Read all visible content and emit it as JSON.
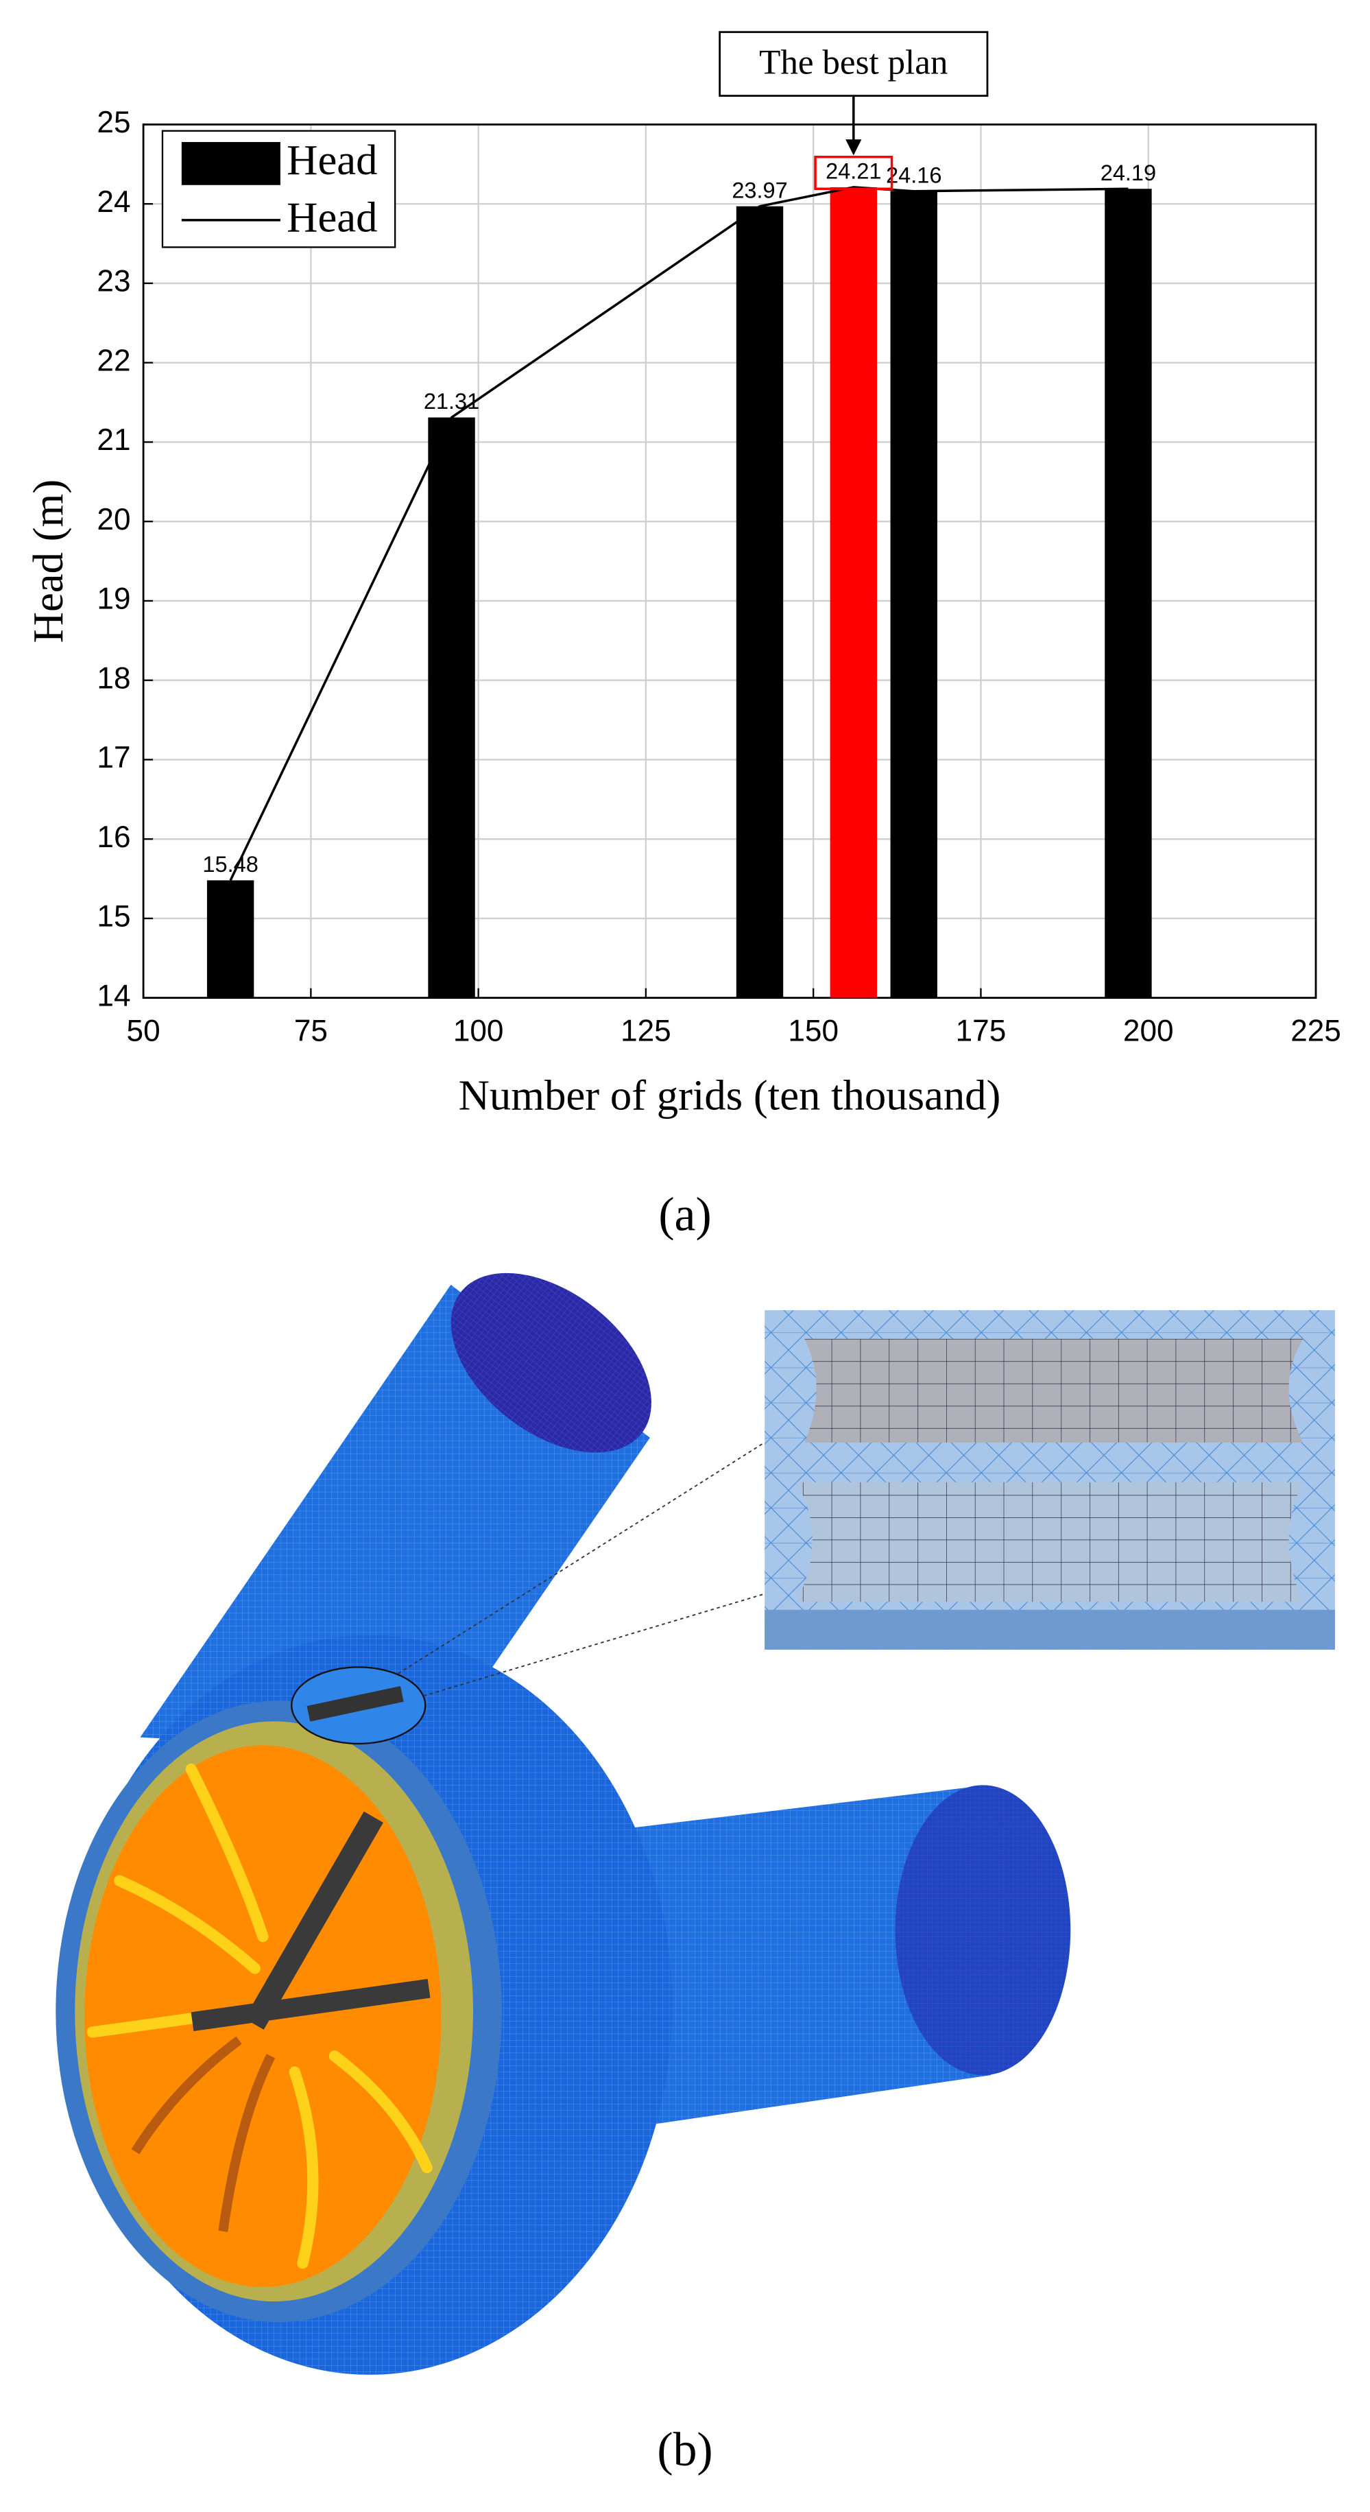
{
  "chart_data": {
    "type": "bar",
    "x": [
      63,
      96,
      142,
      156,
      165,
      197
    ],
    "series": [
      {
        "name": "Head",
        "type": "bar",
        "colors": [
          "#000000",
          "#000000",
          "#000000",
          "#ff0000",
          "#000000",
          "#000000"
        ],
        "values": [
          15.48,
          21.31,
          23.97,
          24.21,
          24.16,
          24.19
        ]
      },
      {
        "name": "Head",
        "type": "line",
        "color": "#000000",
        "values": [
          15.48,
          21.31,
          23.97,
          24.21,
          24.16,
          24.19
        ]
      }
    ],
    "xlim": [
      50,
      225
    ],
    "xticks": [
      50,
      75,
      100,
      125,
      150,
      175,
      200,
      225
    ],
    "ylim": [
      14,
      25
    ],
    "yticks": [
      14,
      15,
      16,
      17,
      18,
      19,
      20,
      21,
      22,
      23,
      24,
      25
    ],
    "xlabel": "Number of grids (ten thousand)",
    "ylabel": "Head (m)",
    "grid": true,
    "legend": "upper left",
    "annotation": {
      "text": "The best plan",
      "index": 3,
      "color": "#ff0000"
    }
  },
  "panels": [
    "(a)",
    "(b)"
  ]
}
